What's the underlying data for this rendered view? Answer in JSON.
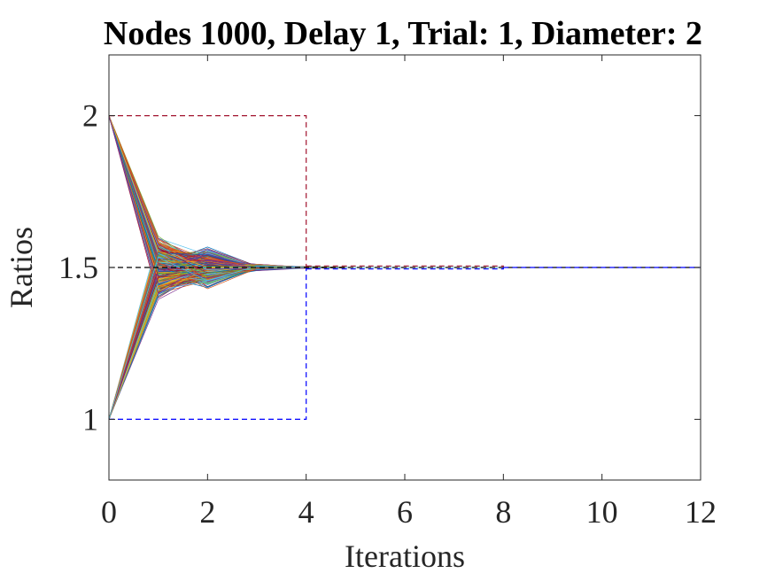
{
  "chart_data": {
    "type": "line",
    "title": "Nodes 1000, Delay 1, Trial: 1, Diameter: 2",
    "xlabel": "Iterations",
    "ylabel": "Ratios",
    "xlim": [
      0,
      12
    ],
    "ylim": [
      0.8,
      2.2
    ],
    "xticks": [
      0,
      2,
      4,
      6,
      8,
      10,
      12
    ],
    "xtick_labels": [
      "0",
      "2",
      "4",
      "6",
      "8",
      "10",
      "12"
    ],
    "yticks": [
      1,
      1.5,
      2
    ],
    "ytick_labels": [
      "1",
      "1.5",
      "2"
    ],
    "grid": false,
    "legend": "none",
    "node_count": 1000,
    "converged_value": 1.5,
    "envelope": {
      "x": [
        0,
        1,
        2,
        3,
        4,
        5,
        6,
        7,
        8,
        9,
        10,
        11,
        12
      ],
      "upper": [
        2.0,
        1.66,
        1.62,
        1.52,
        1.505,
        1.5,
        1.5,
        1.5,
        1.5,
        1.5,
        1.5,
        1.5,
        1.5
      ],
      "lower": [
        1.0,
        1.28,
        1.39,
        1.48,
        1.495,
        1.5,
        1.5,
        1.5,
        1.5,
        1.5,
        1.5,
        1.5,
        1.5
      ]
    },
    "reference_lines": [
      {
        "points": [
          [
            0,
            2
          ],
          [
            4,
            2
          ],
          [
            4,
            1.5
          ]
        ],
        "style": "dashed",
        "color": "#A2142F"
      },
      {
        "points": [
          [
            0,
            1
          ],
          [
            4,
            1
          ],
          [
            4,
            1.5
          ]
        ],
        "style": "dashed",
        "color": "#0000FF"
      },
      {
        "points": [
          [
            0,
            1.5
          ],
          [
            12,
            1.5
          ]
        ],
        "style": "dashed",
        "color": "#000000"
      },
      {
        "points": [
          [
            4,
            1.505
          ],
          [
            8,
            1.505
          ],
          [
            8,
            1.5
          ]
        ],
        "style": "dashed",
        "color": "#A2142F"
      },
      {
        "points": [
          [
            4,
            1.495
          ],
          [
            8,
            1.495
          ],
          [
            8,
            1.5
          ]
        ],
        "style": "dashed",
        "color": "#0000FF"
      },
      {
        "points": [
          [
            8,
            1.5
          ],
          [
            12,
            1.5
          ]
        ],
        "style": "dashed",
        "color": "#0000FF"
      }
    ],
    "series_colors": [
      "#0072BD",
      "#D95319",
      "#EDB120",
      "#7E2F8E",
      "#77AC30",
      "#4DBEEE",
      "#A2142F"
    ]
  }
}
